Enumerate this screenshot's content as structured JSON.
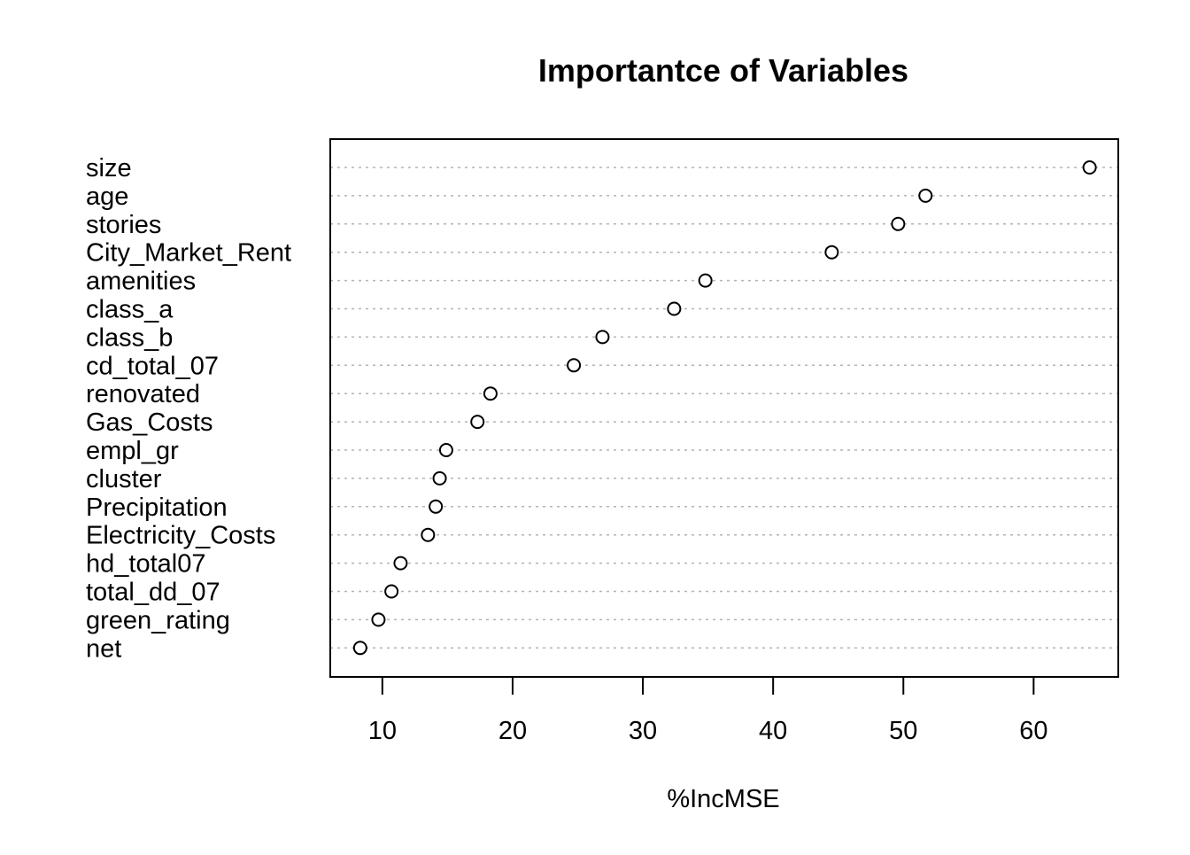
{
  "chart_data": {
    "type": "scatter",
    "subtype": "dotchart",
    "title": "Importantce of Variables",
    "xlabel": "%IncMSE",
    "ylabel": "",
    "categories": [
      "size",
      "age",
      "stories",
      "City_Market_Rent",
      "amenities",
      "class_a",
      "class_b",
      "cd_total_07",
      "renovated",
      "Gas_Costs",
      "empl_gr",
      "cluster",
      "Precipitation",
      "Electricity_Costs",
      "hd_total07",
      "total_dd_07",
      "green_rating",
      "net"
    ],
    "values": [
      64.3,
      51.7,
      49.6,
      44.5,
      34.8,
      32.4,
      26.9,
      24.7,
      18.3,
      17.3,
      14.9,
      14.4,
      14.1,
      13.5,
      11.4,
      10.7,
      9.7,
      8.3
    ],
    "xlim": [
      6,
      66.5
    ],
    "xticks": [
      10,
      20,
      30,
      40,
      50,
      60
    ],
    "grid": "dotted horizontal guide lines per category",
    "marker": "open circle",
    "colors": {
      "points": "#000000",
      "guides": "#b3b3b3",
      "frame": "#000000"
    }
  }
}
